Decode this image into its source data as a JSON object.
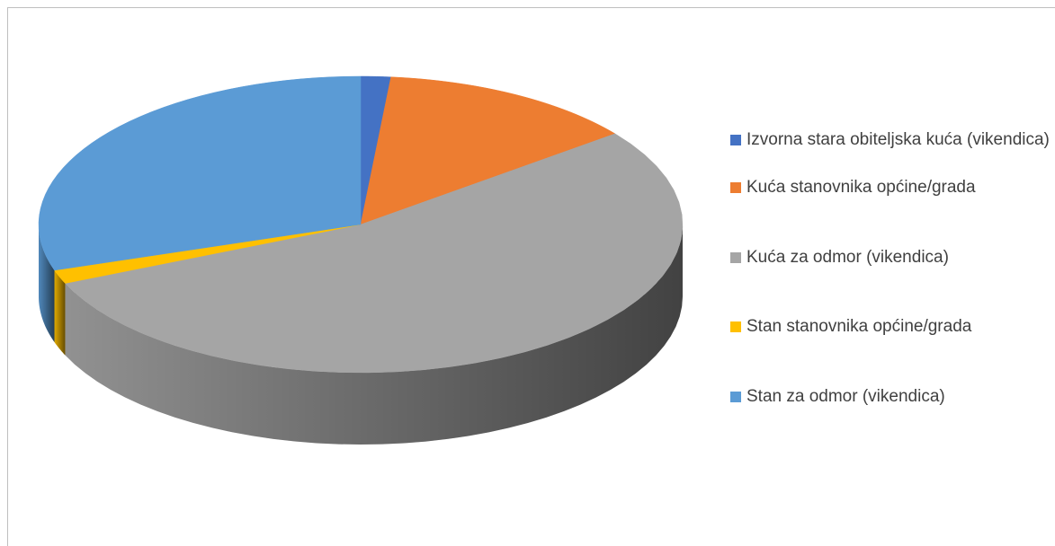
{
  "chart_data": {
    "type": "pie",
    "three_d": true,
    "categories": [
      "Izvorna stara obiteljska kuća (vikendica)",
      "Kuća stanovnika općine/grada",
      "Kuća za odmor (vikendica)",
      "Stan stanovnika općine/grada",
      "Stan za odmor (vikendica)"
    ],
    "values": [
      1.5,
      13,
      54,
      1.5,
      30
    ],
    "colors": [
      "#4472c4",
      "#ed7d31",
      "#a5a5a5",
      "#ffc000",
      "#5b9bd5"
    ],
    "legend": "right"
  }
}
